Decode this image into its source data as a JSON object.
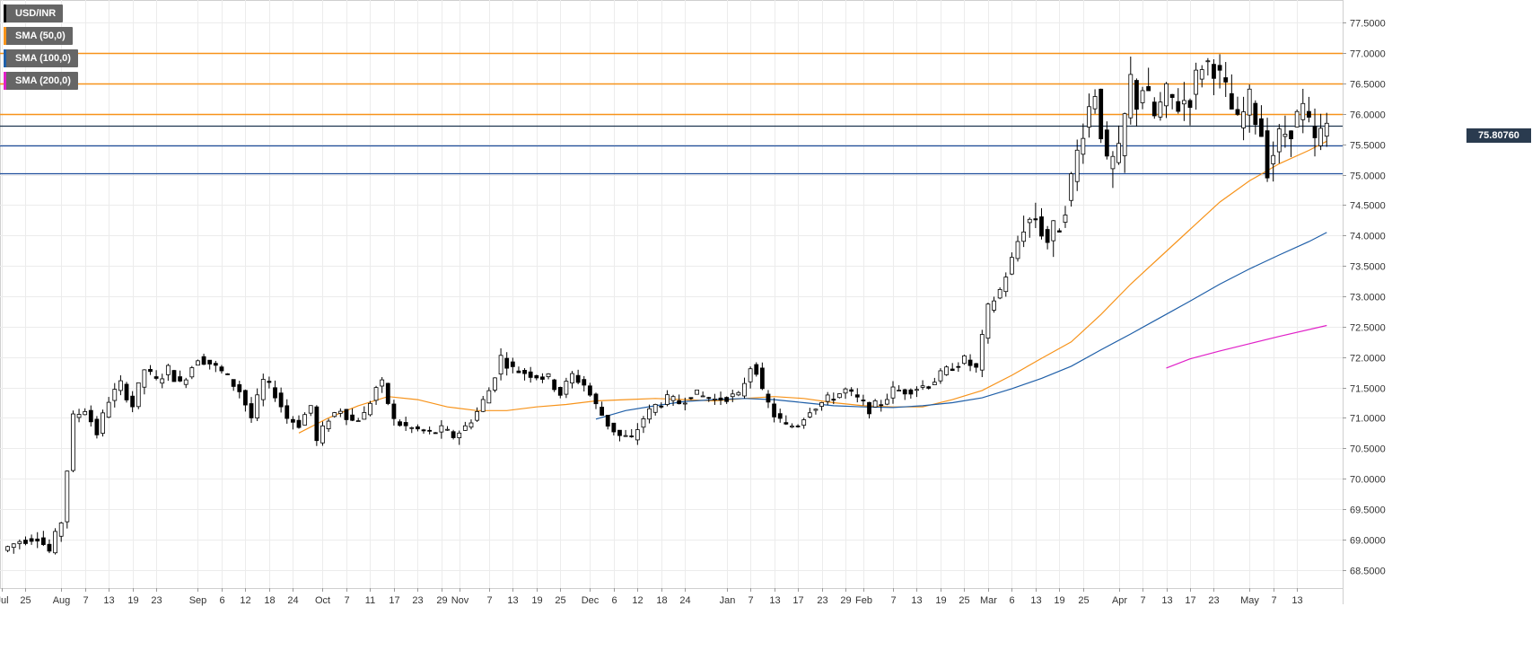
{
  "legend": [
    {
      "label": "USD/INR",
      "color": "#000000"
    },
    {
      "label": "SMA (50,0)",
      "color": "#f7931a"
    },
    {
      "label": "SMA (100,0)",
      "color": "#1f5fa8"
    },
    {
      "label": "SMA (200,0)",
      "color": "#e020c8"
    }
  ],
  "last_price_label": "75.80760",
  "chart_data": {
    "type": "candlestick",
    "title": "",
    "symbol": "USD/INR",
    "y_range": [
      68.2,
      77.8
    ],
    "x_range": [
      0,
      240
    ],
    "y_ticks": [
      "68.5000",
      "69.0000",
      "69.5000",
      "70.0000",
      "70.5000",
      "71.0000",
      "71.5000",
      "72.0000",
      "72.5000",
      "73.0000",
      "73.5000",
      "74.0000",
      "74.5000",
      "75.0000",
      "75.5000",
      "76.0000",
      "76.5000",
      "77.0000",
      "77.5000"
    ],
    "x_ticks": [
      {
        "label": "Jul",
        "i": 0
      },
      {
        "label": "25",
        "i": 4
      },
      {
        "label": "Aug",
        "i": 10
      },
      {
        "label": "7",
        "i": 14
      },
      {
        "label": "13",
        "i": 18
      },
      {
        "label": "19",
        "i": 22
      },
      {
        "label": "23",
        "i": 26
      },
      {
        "label": "Sep",
        "i": 33
      },
      {
        "label": "6",
        "i": 37
      },
      {
        "label": "12",
        "i": 41
      },
      {
        "label": "18",
        "i": 45
      },
      {
        "label": "24",
        "i": 49
      },
      {
        "label": "Oct",
        "i": 54
      },
      {
        "label": "7",
        "i": 58
      },
      {
        "label": "11",
        "i": 62
      },
      {
        "label": "17",
        "i": 66
      },
      {
        "label": "23",
        "i": 70
      },
      {
        "label": "29",
        "i": 74
      },
      {
        "label": "Nov",
        "i": 77
      },
      {
        "label": "7",
        "i": 82
      },
      {
        "label": "13",
        "i": 86
      },
      {
        "label": "19",
        "i": 90
      },
      {
        "label": "25",
        "i": 94
      },
      {
        "label": "Dec",
        "i": 99
      },
      {
        "label": "6",
        "i": 103
      },
      {
        "label": "12",
        "i": 107
      },
      {
        "label": "18",
        "i": 111
      },
      {
        "label": "24",
        "i": 115
      },
      {
        "label": "Jan",
        "i": 122
      },
      {
        "label": "7",
        "i": 126
      },
      {
        "label": "13",
        "i": 130
      },
      {
        "label": "17",
        "i": 134
      },
      {
        "label": "23",
        "i": 138
      },
      {
        "label": "29",
        "i": 142
      },
      {
        "label": "Feb",
        "i": 145
      },
      {
        "label": "7",
        "i": 150
      },
      {
        "label": "13",
        "i": 154
      },
      {
        "label": "19",
        "i": 158
      },
      {
        "label": "25",
        "i": 162
      },
      {
        "label": "Mar",
        "i": 166
      },
      {
        "label": "6",
        "i": 170
      },
      {
        "label": "13",
        "i": 174
      },
      {
        "label": "19",
        "i": 178
      },
      {
        "label": "25",
        "i": 182
      },
      {
        "label": "Apr",
        "i": 188
      },
      {
        "label": "7",
        "i": 192
      },
      {
        "label": "13",
        "i": 196
      },
      {
        "label": "17",
        "i": 200
      },
      {
        "label": "23",
        "i": 204
      },
      {
        "label": "May",
        "i": 210
      },
      {
        "label": "7",
        "i": 214
      },
      {
        "label": "13",
        "i": 218
      }
    ],
    "anchors": [
      [
        0,
        68.82
      ],
      [
        3,
        68.98
      ],
      [
        6,
        69.05
      ],
      [
        8,
        68.8
      ],
      [
        10,
        69.3
      ],
      [
        12,
        71.0
      ],
      [
        14,
        71.15
      ],
      [
        16,
        70.75
      ],
      [
        18,
        71.3
      ],
      [
        20,
        71.55
      ],
      [
        22,
        71.2
      ],
      [
        24,
        71.8
      ],
      [
        26,
        71.6
      ],
      [
        28,
        71.8
      ],
      [
        30,
        71.55
      ],
      [
        33,
        72.0
      ],
      [
        35,
        71.9
      ],
      [
        37,
        71.75
      ],
      [
        40,
        71.45
      ],
      [
        42,
        71.0
      ],
      [
        44,
        71.6
      ],
      [
        46,
        71.4
      ],
      [
        48,
        71.0
      ],
      [
        50,
        70.9
      ],
      [
        52,
        71.2
      ],
      [
        53,
        70.6
      ],
      [
        55,
        71.0
      ],
      [
        57,
        71.15
      ],
      [
        59,
        70.95
      ],
      [
        61,
        71.05
      ],
      [
        63,
        71.5
      ],
      [
        64,
        71.55
      ],
      [
        66,
        70.95
      ],
      [
        68,
        70.85
      ],
      [
        70,
        70.8
      ],
      [
        72,
        70.75
      ],
      [
        74,
        70.8
      ],
      [
        76,
        70.7
      ],
      [
        78,
        70.85
      ],
      [
        80,
        71.1
      ],
      [
        82,
        71.45
      ],
      [
        84,
        72.0
      ],
      [
        86,
        71.8
      ],
      [
        88,
        71.75
      ],
      [
        90,
        71.7
      ],
      [
        92,
        71.65
      ],
      [
        94,
        71.4
      ],
      [
        96,
        71.7
      ],
      [
        98,
        71.55
      ],
      [
        100,
        71.2
      ],
      [
        102,
        70.9
      ],
      [
        104,
        70.7
      ],
      [
        106,
        70.65
      ],
      [
        108,
        71.0
      ],
      [
        110,
        71.2
      ],
      [
        112,
        71.3
      ],
      [
        114,
        71.25
      ],
      [
        116,
        71.4
      ],
      [
        118,
        71.35
      ],
      [
        120,
        71.3
      ],
      [
        122,
        71.35
      ],
      [
        124,
        71.35
      ],
      [
        126,
        71.85
      ],
      [
        127,
        71.8
      ],
      [
        128,
        71.4
      ],
      [
        130,
        71.05
      ],
      [
        132,
        70.85
      ],
      [
        134,
        70.9
      ],
      [
        136,
        71.15
      ],
      [
        138,
        71.25
      ],
      [
        140,
        71.35
      ],
      [
        142,
        71.45
      ],
      [
        144,
        71.3
      ],
      [
        146,
        71.15
      ],
      [
        148,
        71.25
      ],
      [
        150,
        71.45
      ],
      [
        152,
        71.45
      ],
      [
        154,
        71.5
      ],
      [
        156,
        71.55
      ],
      [
        158,
        71.7
      ],
      [
        160,
        71.85
      ],
      [
        162,
        71.95
      ],
      [
        164,
        71.8
      ],
      [
        166,
        72.8
      ],
      [
        168,
        73.1
      ],
      [
        170,
        73.6
      ],
      [
        172,
        74.2
      ],
      [
        174,
        74.3
      ],
      [
        176,
        73.9
      ],
      [
        178,
        74.2
      ],
      [
        180,
        74.9
      ],
      [
        182,
        75.8
      ],
      [
        184,
        76.4
      ],
      [
        186,
        75.1
      ],
      [
        188,
        75.3
      ],
      [
        190,
        76.55
      ],
      [
        191,
        76.2
      ],
      [
        192,
        76.45
      ],
      [
        194,
        75.95
      ],
      [
        196,
        76.3
      ],
      [
        198,
        76.15
      ],
      [
        200,
        76.3
      ],
      [
        202,
        76.85
      ],
      [
        204,
        76.8
      ],
      [
        206,
        76.35
      ],
      [
        208,
        75.8
      ],
      [
        210,
        76.2
      ],
      [
        212,
        75.7
      ],
      [
        213,
        75.15
      ],
      [
        215,
        75.6
      ],
      [
        217,
        75.8
      ],
      [
        219,
        76.05
      ],
      [
        221,
        75.5
      ],
      [
        223,
        75.81
      ]
    ],
    "sma50": [
      [
        50,
        70.75
      ],
      [
        55,
        71.0
      ],
      [
        60,
        71.2
      ],
      [
        65,
        71.35
      ],
      [
        70,
        71.3
      ],
      [
        75,
        71.18
      ],
      [
        80,
        71.12
      ],
      [
        85,
        71.12
      ],
      [
        90,
        71.18
      ],
      [
        95,
        71.22
      ],
      [
        100,
        71.28
      ],
      [
        105,
        71.3
      ],
      [
        110,
        71.32
      ],
      [
        115,
        71.3
      ],
      [
        120,
        71.28
      ],
      [
        125,
        71.32
      ],
      [
        130,
        71.35
      ],
      [
        135,
        71.32
      ],
      [
        140,
        71.25
      ],
      [
        145,
        71.2
      ],
      [
        150,
        71.18
      ],
      [
        155,
        71.18
      ],
      [
        160,
        71.3
      ],
      [
        165,
        71.45
      ],
      [
        170,
        71.7
      ],
      [
        175,
        71.98
      ],
      [
        180,
        72.25
      ],
      [
        185,
        72.7
      ],
      [
        190,
        73.2
      ],
      [
        195,
        73.65
      ],
      [
        200,
        74.1
      ],
      [
        205,
        74.55
      ],
      [
        210,
        74.9
      ],
      [
        215,
        75.18
      ],
      [
        220,
        75.4
      ],
      [
        223,
        75.55
      ]
    ],
    "sma100": [
      [
        100,
        70.98
      ],
      [
        105,
        71.12
      ],
      [
        110,
        71.2
      ],
      [
        115,
        71.27
      ],
      [
        120,
        71.3
      ],
      [
        125,
        71.32
      ],
      [
        130,
        71.3
      ],
      [
        135,
        71.25
      ],
      [
        140,
        71.2
      ],
      [
        145,
        71.18
      ],
      [
        150,
        71.17
      ],
      [
        155,
        71.2
      ],
      [
        160,
        71.25
      ],
      [
        165,
        71.33
      ],
      [
        170,
        71.48
      ],
      [
        175,
        71.65
      ],
      [
        180,
        71.85
      ],
      [
        185,
        72.12
      ],
      [
        190,
        72.38
      ],
      [
        195,
        72.65
      ],
      [
        200,
        72.92
      ],
      [
        205,
        73.2
      ],
      [
        210,
        73.45
      ],
      [
        215,
        73.68
      ],
      [
        220,
        73.9
      ],
      [
        223,
        74.05
      ]
    ],
    "sma200": [
      [
        196,
        71.82
      ],
      [
        200,
        71.97
      ],
      [
        205,
        72.1
      ],
      [
        210,
        72.22
      ],
      [
        215,
        72.34
      ],
      [
        223,
        72.52
      ]
    ],
    "horizontal_lines": [
      {
        "value": 77.0,
        "color": "#f7931a"
      },
      {
        "value": 76.5,
        "color": "#f7931a"
      },
      {
        "value": 76.0,
        "color": "#f7931a"
      },
      {
        "value": 75.8076,
        "color": "#1e3550"
      },
      {
        "value": 75.48,
        "color": "#1f4e9c"
      },
      {
        "value": 75.02,
        "color": "#1f4e9c"
      }
    ],
    "last_value": 75.8076,
    "grid": true,
    "legend_position": "top-left"
  }
}
